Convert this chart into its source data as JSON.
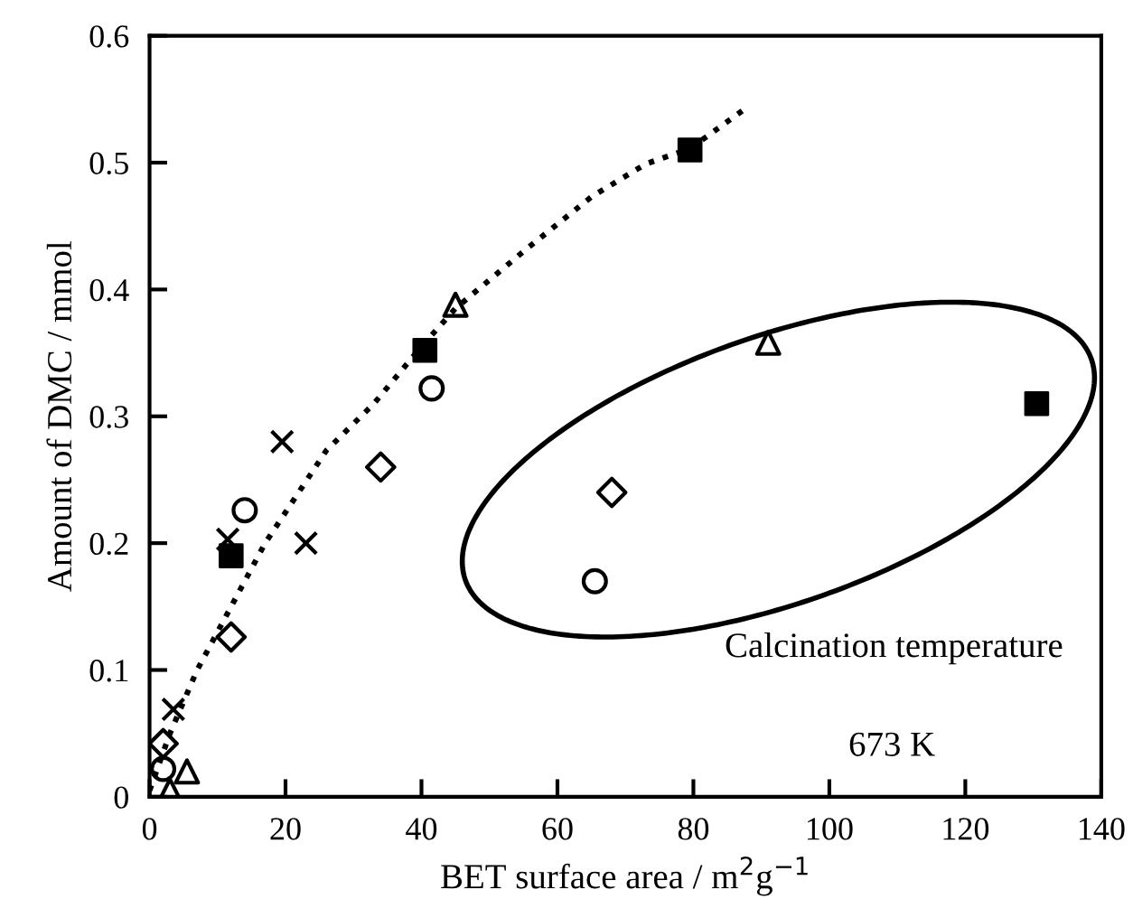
{
  "chart_data": {
    "type": "scatter",
    "xlabel": "BET surface area / m$^{2}$g$^{−1}$",
    "ylabel": "Amount of DMC / mmol",
    "annotations": [
      "Calcination temperature",
      "673 K"
    ],
    "xlim": [
      0,
      140
    ],
    "xticks": [
      0,
      20,
      40,
      60,
      80,
      100,
      120,
      140
    ],
    "ylim": [
      0,
      0.6
    ],
    "yticks": [
      0,
      0.1,
      0.2,
      0.3,
      0.4,
      0.5,
      0.6
    ],
    "grid": false,
    "legend": false,
    "series": [
      {
        "marker": "square",
        "color": "#000000",
        "x": [
          12,
          40.5,
          79.5,
          130.5
        ],
        "values": [
          0.19,
          0.352,
          0.51,
          0.31
        ]
      },
      {
        "marker": "triangle",
        "color": "#000000",
        "x": [
          3,
          5.5,
          45,
          91
        ],
        "values": [
          0.005,
          0.02,
          0.388,
          0.358
        ]
      },
      {
        "marker": "circle",
        "color": "#000000",
        "x": [
          2,
          14,
          41.5,
          65.5
        ],
        "values": [
          0.022,
          0.226,
          0.322,
          0.17
        ]
      },
      {
        "marker": "diamond",
        "color": "#000000",
        "x": [
          2,
          12,
          34,
          68
        ],
        "values": [
          0.042,
          0.126,
          0.26,
          0.24
        ]
      },
      {
        "marker": "cross",
        "color": "#000000",
        "x": [
          3.5,
          11.5,
          19.5,
          23
        ],
        "values": [
          0.069,
          0.203,
          0.28,
          0.2
        ]
      },
      {
        "type": "line",
        "marker": "none",
        "line_style": "dotted",
        "color": "#000000",
        "x": [
          0,
          3,
          7,
          12,
          17,
          26,
          33,
          40,
          45,
          55,
          65,
          73,
          79.5,
          88
        ],
        "values": [
          0.005,
          0.05,
          0.1,
          0.15,
          0.2,
          0.273,
          0.31,
          0.355,
          0.385,
          0.43,
          0.473,
          0.499,
          0.511,
          0.544
        ]
      }
    ]
  }
}
